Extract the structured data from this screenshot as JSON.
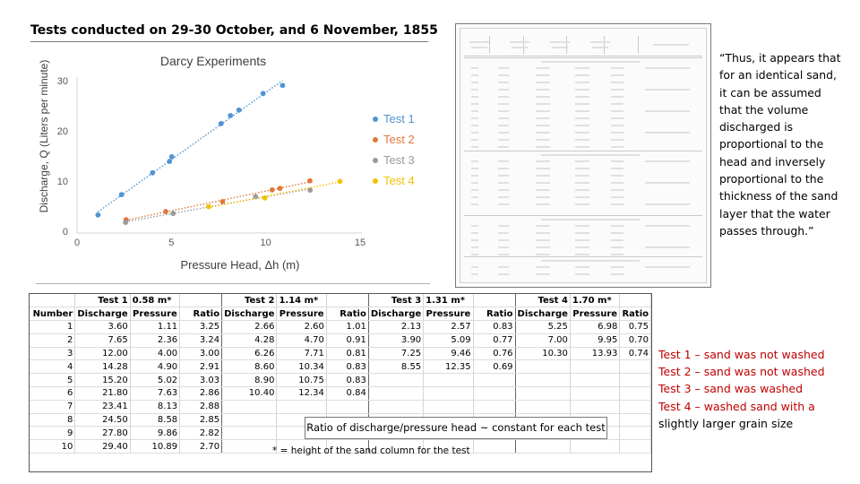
{
  "slide": {
    "title": "Tests conducted on 29-30 October, and 6 November, 1855"
  },
  "quote": {
    "text": "“Thus, it appears that for an identical sand, it can be assumed that the volume discharged is proportional to the head and inversely proportional to the thickness of the sand layer that the water passes through.”"
  },
  "notes": [
    {
      "text": "Test 1 – sand was not washed",
      "color": "#c00000"
    },
    {
      "text": "Test 2 – sand was not washed",
      "color": "#c00000"
    },
    {
      "text": "Test 3 – sand was washed",
      "color": "#c00000"
    },
    {
      "text": "Test 4 – washed sand with a",
      "color": "#c00000"
    },
    {
      "text": "slightly larger grain size",
      "color": "#000000"
    }
  ],
  "chart_data": {
    "type": "scatter",
    "title": "Darcy Experiments",
    "xlabel": "Pressure Head, Δh (m)",
    "ylabel": "Discharge, Q (Liters per minute)",
    "xlim": [
      0,
      15
    ],
    "ylim": [
      0,
      30
    ],
    "x_ticks": [
      "0",
      "5",
      "10",
      "15"
    ],
    "y_ticks": [
      "0",
      "10",
      "20",
      "30"
    ],
    "grid": false,
    "legend_position": "right",
    "trendlines": "dotted linear",
    "series": [
      {
        "name": "Test 1",
        "color": "#4f94d4",
        "x": [
          1.11,
          2.36,
          4.0,
          4.9,
          5.02,
          7.63,
          8.13,
          8.58,
          9.86,
          10.89
        ],
        "y": [
          3.6,
          7.65,
          12.0,
          14.28,
          15.2,
          21.8,
          23.41,
          24.5,
          27.8,
          29.4
        ]
      },
      {
        "name": "Test 2",
        "color": "#e0773b",
        "x": [
          2.6,
          4.7,
          7.71,
          10.34,
          10.75,
          12.34
        ],
        "y": [
          2.66,
          4.28,
          6.26,
          8.6,
          8.9,
          10.4
        ]
      },
      {
        "name": "Test 3",
        "color": "#9a9a9a",
        "x": [
          2.57,
          5.09,
          9.46,
          12.35
        ],
        "y": [
          2.13,
          3.9,
          7.25,
          8.55
        ]
      },
      {
        "name": "Test 4",
        "color": "#f2c200",
        "x": [
          6.98,
          9.95,
          13.93
        ],
        "y": [
          5.25,
          7.0,
          10.3
        ]
      }
    ]
  },
  "table": {
    "group_headers": [
      {
        "label": "Test 1",
        "height": "0.58 m*"
      },
      {
        "label": "Test 2",
        "height": "1.14 m*"
      },
      {
        "label": "Test 3",
        "height": "1.31 m*"
      },
      {
        "label": "Test 4",
        "height": "1.70 m*"
      }
    ],
    "columns": {
      "number": "Number",
      "discharge": "Discharge",
      "pressure": "Pressure",
      "ratio": "Ratio"
    },
    "rows": [
      {
        "n": "1",
        "t1": [
          "3.60",
          "1.11",
          "3.25"
        ],
        "t2": [
          "2.66",
          "2.60",
          "1.01"
        ],
        "t3": [
          "2.13",
          "2.57",
          "0.83"
        ],
        "t4": [
          "5.25",
          "6.98",
          "0.75"
        ]
      },
      {
        "n": "2",
        "t1": [
          "7.65",
          "2.36",
          "3.24"
        ],
        "t2": [
          "4.28",
          "4.70",
          "0.91"
        ],
        "t3": [
          "3.90",
          "5.09",
          "0.77"
        ],
        "t4": [
          "7.00",
          "9.95",
          "0.70"
        ]
      },
      {
        "n": "3",
        "t1": [
          "12.00",
          "4.00",
          "3.00"
        ],
        "t2": [
          "6.26",
          "7.71",
          "0.81"
        ],
        "t3": [
          "7.25",
          "9.46",
          "0.76"
        ],
        "t4": [
          "10.30",
          "13.93",
          "0.74"
        ]
      },
      {
        "n": "4",
        "t1": [
          "14.28",
          "4.90",
          "2.91"
        ],
        "t2": [
          "8.60",
          "10.34",
          "0.83"
        ],
        "t3": [
          "8.55",
          "12.35",
          "0.69"
        ],
        "t4": [
          "",
          "",
          ""
        ]
      },
      {
        "n": "5",
        "t1": [
          "15.20",
          "5.02",
          "3.03"
        ],
        "t2": [
          "8.90",
          "10.75",
          "0.83"
        ],
        "t3": [
          "",
          "",
          ""
        ],
        "t4": [
          "",
          "",
          ""
        ]
      },
      {
        "n": "6",
        "t1": [
          "21.80",
          "7.63",
          "2.86"
        ],
        "t2": [
          "10.40",
          "12.34",
          "0.84"
        ],
        "t3": [
          "",
          "",
          ""
        ],
        "t4": [
          "",
          "",
          ""
        ]
      },
      {
        "n": "7",
        "t1": [
          "23.41",
          "8.13",
          "2.88"
        ],
        "t2": [
          "",
          "",
          ""
        ],
        "t3": [
          "",
          "",
          ""
        ],
        "t4": [
          "",
          "",
          ""
        ]
      },
      {
        "n": "8",
        "t1": [
          "24.50",
          "8.58",
          "2.85"
        ],
        "t2": [
          "",
          "",
          ""
        ],
        "t3": [
          "",
          "",
          ""
        ],
        "t4": [
          "",
          "",
          ""
        ]
      },
      {
        "n": "9",
        "t1": [
          "27.80",
          "9.86",
          "2.82"
        ],
        "t2": [
          "",
          "",
          ""
        ],
        "t3": [
          "",
          "",
          ""
        ],
        "t4": [
          "",
          "",
          ""
        ]
      },
      {
        "n": "10",
        "t1": [
          "29.40",
          "10.89",
          "2.70"
        ],
        "t2": [
          "",
          "",
          ""
        ],
        "t3": [
          "",
          "",
          ""
        ],
        "t4": [
          "",
          "",
          ""
        ]
      }
    ],
    "annotation": "Ratio of discharge/pressure head ~ constant for each test",
    "footnote": "* = height of the sand column for the test"
  }
}
